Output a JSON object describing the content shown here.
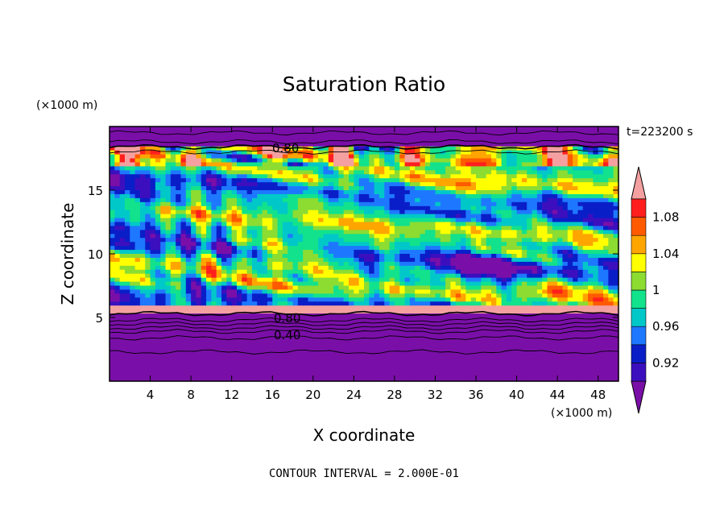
{
  "chart_data": {
    "type": "heatmap",
    "title": "Saturation Ratio",
    "xlabel": "X coordinate",
    "ylabel": "Z coordinate",
    "x_unit": "(×1000 m)",
    "y_unit": "(×1000 m)",
    "xlim": [
      0,
      50
    ],
    "ylim": [
      0,
      20
    ],
    "x_ticks": [
      "4",
      "8",
      "12",
      "16",
      "20",
      "24",
      "28",
      "32",
      "36",
      "40",
      "44",
      "48"
    ],
    "y_ticks": [
      "5",
      "10",
      "15"
    ],
    "time_label": "t=223200 s",
    "contour_interval_label": "CONTOUR INTERVAL = 2.000E-01",
    "contour_labels": [
      "0.80",
      "0.80",
      "0.40"
    ],
    "colorbar": {
      "levels": [
        0.9,
        0.92,
        0.94,
        0.96,
        0.98,
        1.0,
        1.02,
        1.04,
        1.06,
        1.08,
        1.1
      ],
      "tick_labels": [
        "1.08",
        "1.04",
        "1",
        "0.96",
        "0.92"
      ],
      "colors": [
        "#7a0fa8",
        "#3c0fbe",
        "#0a1ec8",
        "#1e78ff",
        "#00c8c8",
        "#12e28c",
        "#8cdc32",
        "#ffff00",
        "#ffa500",
        "#ff5a00",
        "#ff1e1e",
        "#f4a0a0"
      ]
    }
  }
}
